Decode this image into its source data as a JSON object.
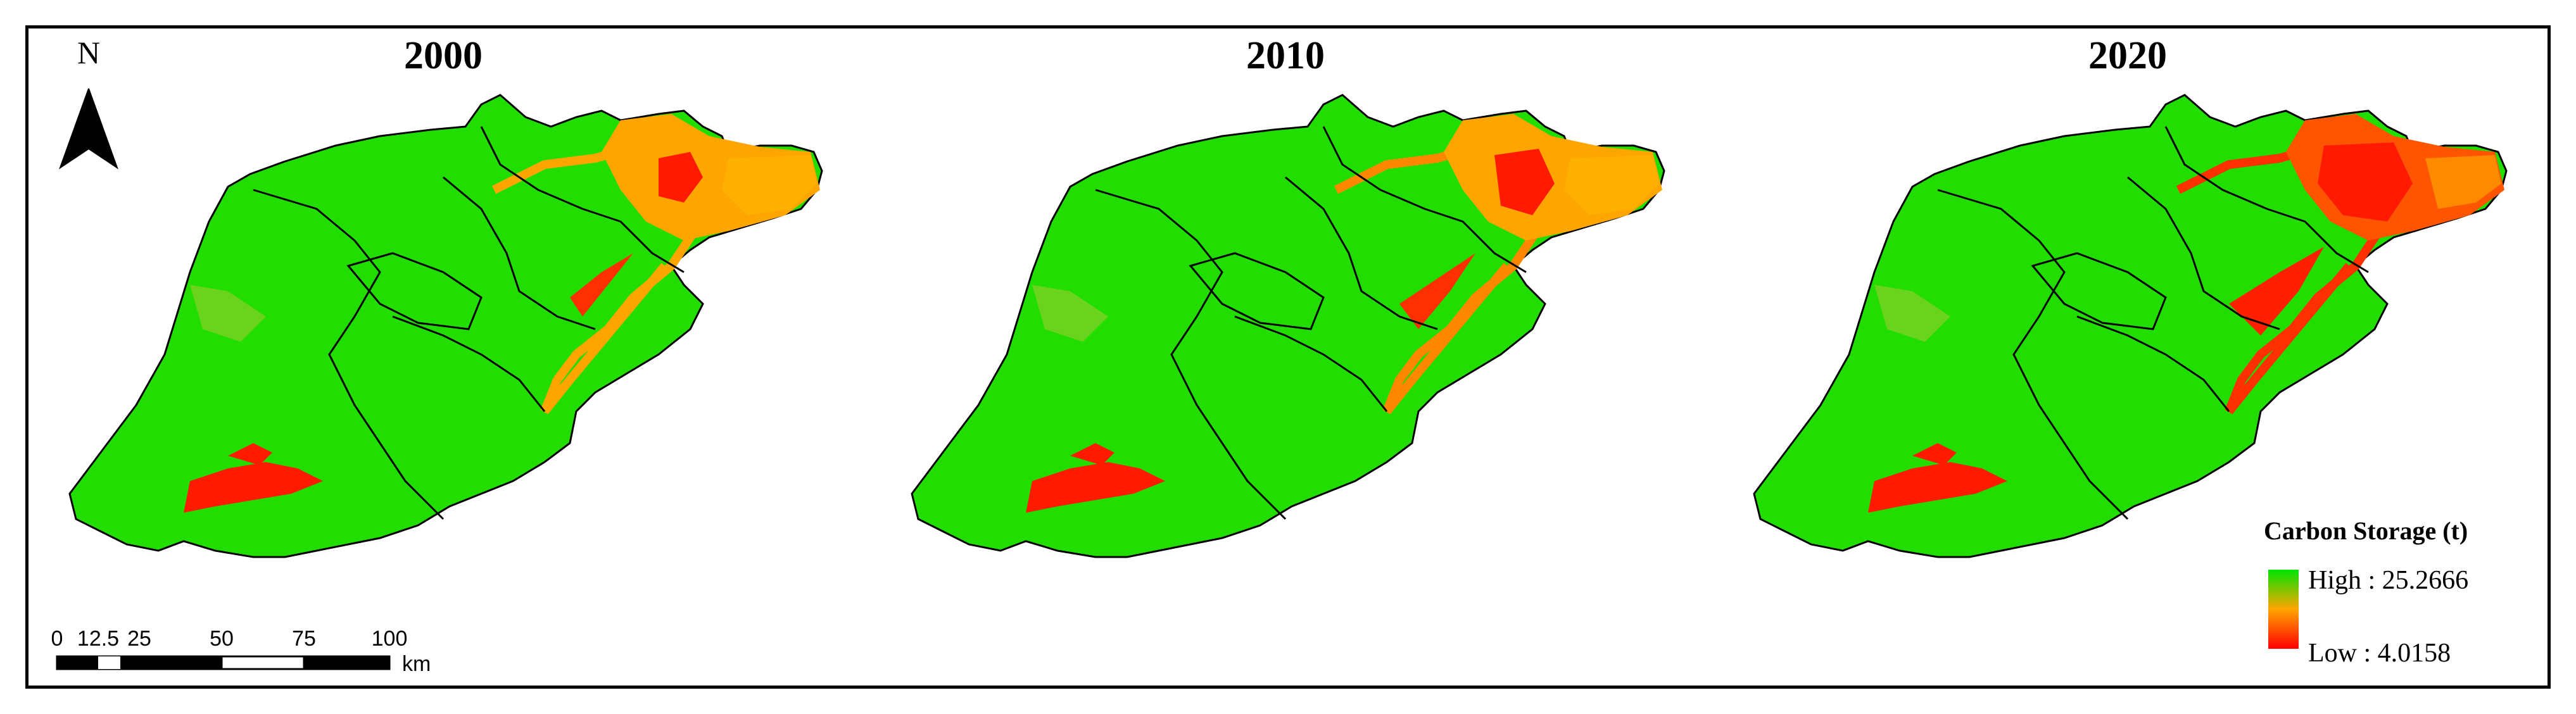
{
  "panels": [
    {
      "year": "2000"
    },
    {
      "year": "2010"
    },
    {
      "year": "2020"
    }
  ],
  "north_arrow": {
    "label": "N"
  },
  "scale_bar": {
    "ticks": [
      "0",
      "12.5",
      "25",
      "50",
      "75",
      "100"
    ],
    "unit": "km"
  },
  "legend": {
    "title": "Carbon Storage (t)",
    "high_label": "High : 25.2666",
    "low_label": "Low : 4.0158",
    "colors": {
      "high": "#00e400",
      "mid": "#ffa500",
      "low": "#ff0000"
    }
  }
}
